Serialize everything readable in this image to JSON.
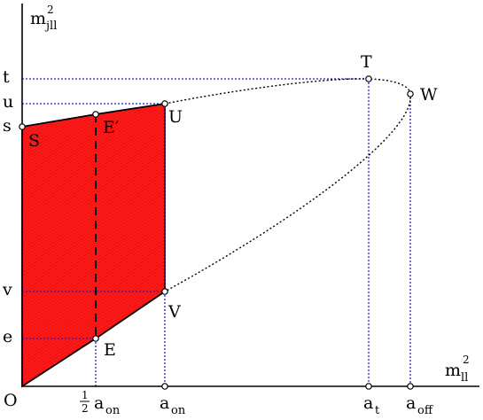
{
  "axes": {
    "y_axis_label": {
      "base": "m",
      "sub": "jll",
      "sup": "2"
    },
    "x_axis_label": {
      "base": "m",
      "sub": "ll",
      "sup": "2"
    },
    "origin": "O"
  },
  "y_ticks": [
    "t",
    "u",
    "s",
    "v",
    "e"
  ],
  "x_ticks": {
    "half_a_on": {
      "frac_num": "1",
      "frac_den": "2",
      "base": "a",
      "sub": "on"
    },
    "a_on": {
      "base": "a",
      "sub": "on"
    },
    "a_t": {
      "base": "a",
      "sub": "t"
    },
    "a_off": {
      "base": "a",
      "sub": "off"
    }
  },
  "points": {
    "S": "S",
    "E_prime": "E′",
    "U": "U",
    "T": "T",
    "W": "W",
    "V": "V",
    "E": "E"
  },
  "colors": {
    "region_fill": "#ff1a1a",
    "region_hatch": "#c80000",
    "guide_lines": "#1f1fd0",
    "axes": "#000000"
  }
}
